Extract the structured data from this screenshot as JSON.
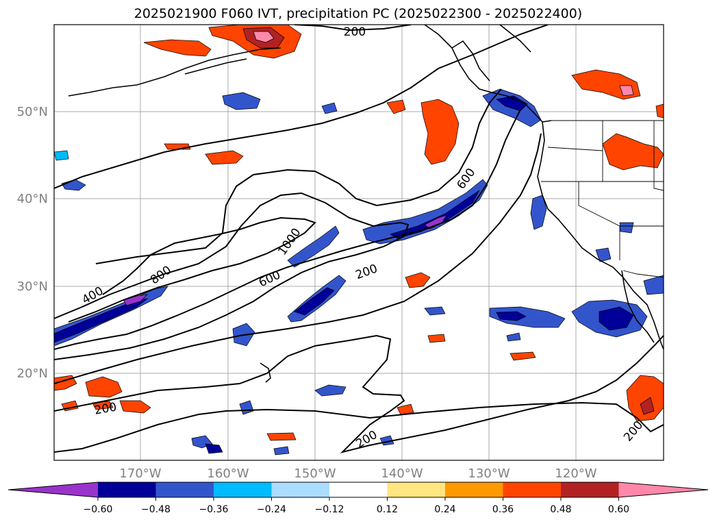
{
  "title": "2025021900 F060 IVT, precipitation PC (2025022300 - 2025022400)",
  "lat_labels": [
    "50°N",
    "40°N",
    "30°N",
    "20°N"
  ],
  "lon_labels": [
    "170°W",
    "160°W",
    "150°W",
    "140°W",
    "130°W",
    "120°W"
  ],
  "contour_labels": [
    "200",
    "400",
    "800",
    "1000",
    "600",
    "200",
    "600",
    "200",
    "200",
    "200"
  ],
  "colorbar": {
    "ticks": [
      "−0.60",
      "−0.48",
      "−0.36",
      "−0.24",
      "−0.12",
      "0.12",
      "0.24",
      "0.36",
      "0.48",
      "0.60"
    ],
    "colors": [
      "#9933cc",
      "#000099",
      "#3355cc",
      "#00bbff",
      "#aaddff",
      "#ffffff",
      "#ffe680",
      "#ff9900",
      "#ff4400",
      "#b22222",
      "#ff88aa"
    ]
  }
}
